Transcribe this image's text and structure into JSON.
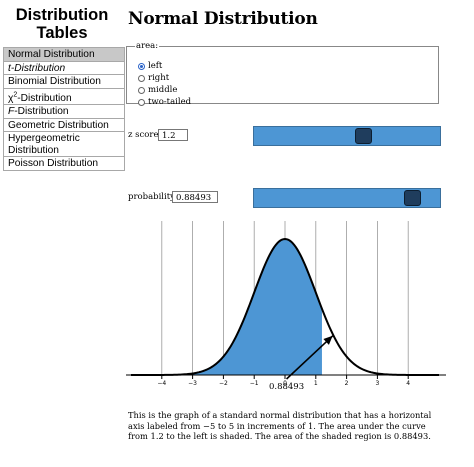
{
  "sidebar": {
    "title_line1": "Distribution",
    "title_line2": "Tables",
    "items": [
      {
        "label": "Normal Distribution",
        "active": true
      },
      {
        "label": "t-Distribution",
        "active": false
      },
      {
        "label": "Binomial Distribution",
        "active": false
      },
      {
        "label": "χ2-Distribution",
        "active": false
      },
      {
        "label": "F-Distribution",
        "active": false
      },
      {
        "label": "Geometric Distribution",
        "active": false
      },
      {
        "label": "Hypergeometric Distribution",
        "active": false
      },
      {
        "label": "Poisson Distribution",
        "active": false
      }
    ]
  },
  "main": {
    "title": "Normal Distribution",
    "area": {
      "legend": "area:",
      "options": [
        "left",
        "right",
        "middle",
        "two-tailed"
      ],
      "selected": "left"
    },
    "z_score": {
      "label": "z score",
      "value": "1.2",
      "slider_fraction": 0.6
    },
    "probability": {
      "label": "probability",
      "value": "0.88493",
      "slider_fraction": 0.88493
    },
    "caption": "This is the graph of a standard normal distribution that has a horizontal axis labeled from −5 to 5 in increments of 1. The area under the curve from 1.2 to the left is shaded. The area of the shaded region is 0.88493."
  },
  "chart_data": {
    "type": "area",
    "function": "standard normal density",
    "x_range": [
      -5,
      5
    ],
    "x_ticks": [
      -4,
      -3,
      -2,
      -1,
      0,
      1,
      2,
      3,
      4
    ],
    "tick_labels": [
      "−4",
      "−3",
      "−2",
      "−1",
      "0",
      "1",
      "2",
      "3",
      "4"
    ],
    "grid": true,
    "shaded_region": {
      "from": -5,
      "to": 1.2
    },
    "shaded_area_label": "0.88493",
    "colors": {
      "fill": "#4d96d4",
      "curve": "#000000",
      "grid": "#999999"
    }
  }
}
